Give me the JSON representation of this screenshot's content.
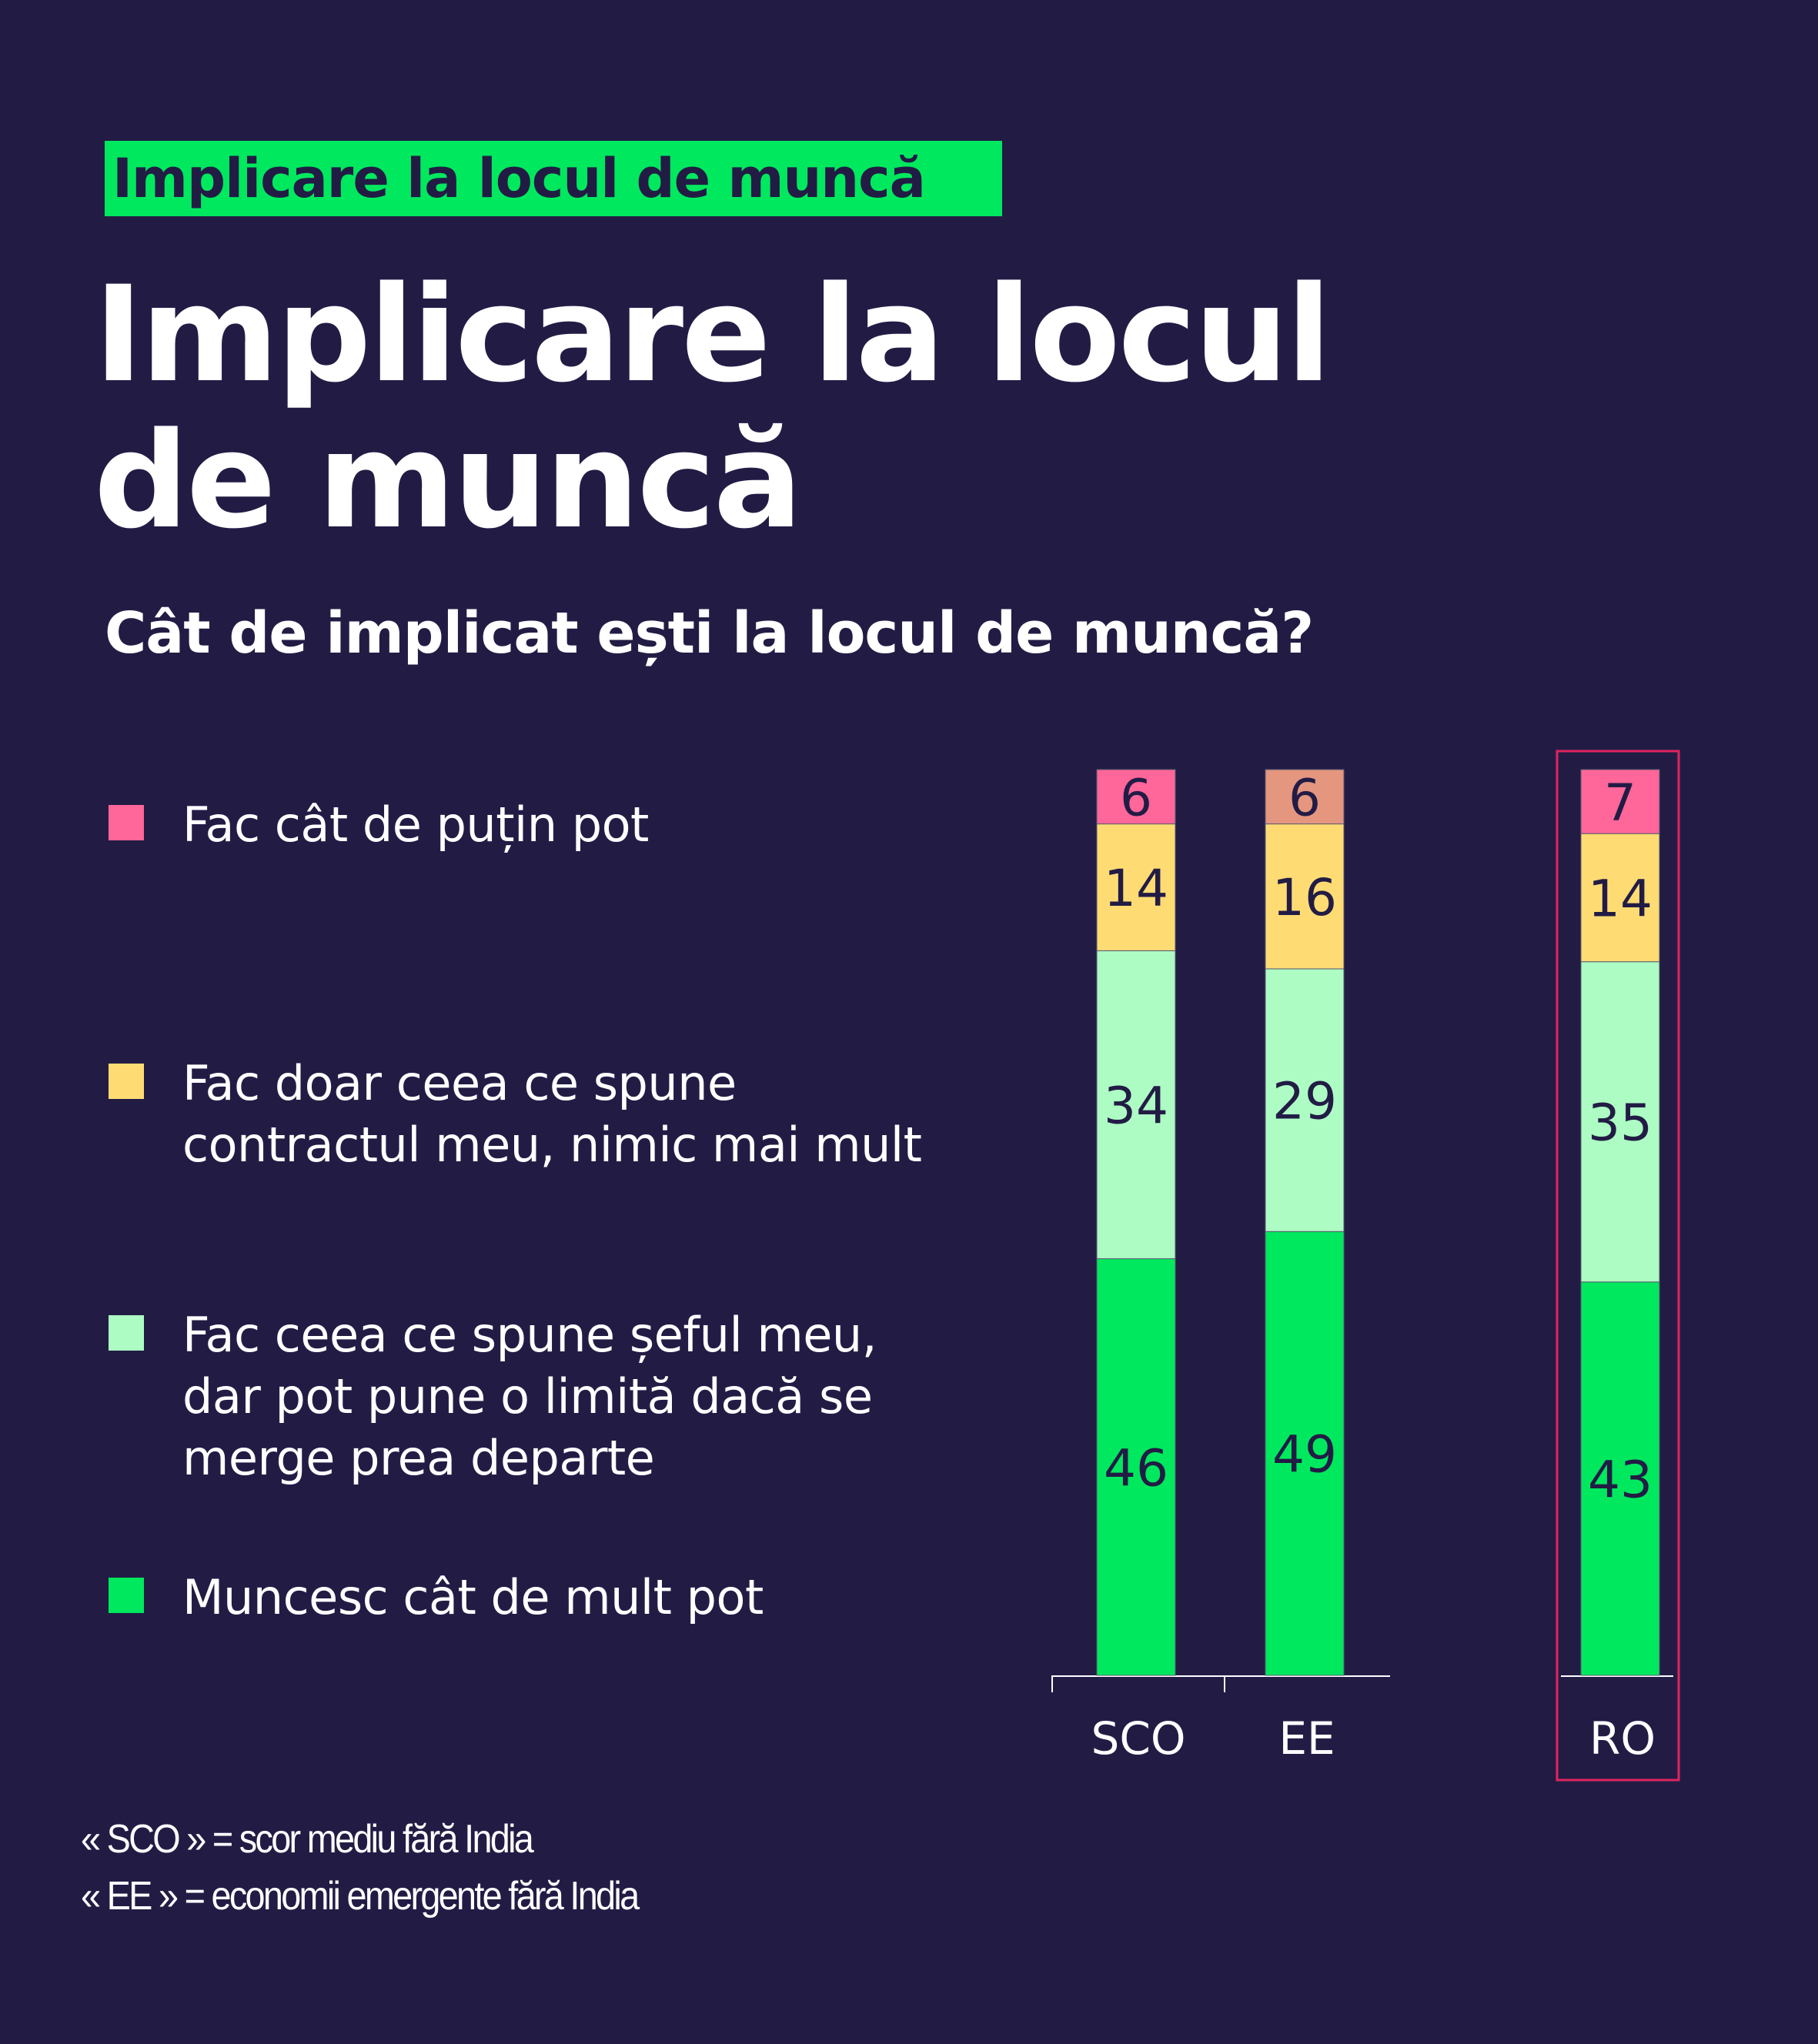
{
  "tag": "Implicare la locul de muncă",
  "title_lines": [
    "Implicare la locul",
    "de muncă"
  ],
  "subtitle": "Cât de implicat ești la locul de muncă?",
  "legend": [
    {
      "label": "Fac cât de puțin pot",
      "color": "#ff6699"
    },
    {
      "label": "Fac doar ceea ce spune contractul meu, nimic mai mult",
      "color": "#ffdc73"
    },
    {
      "label": "Fac ceea ce spune șeful meu, dar pot pune o limită dacă se merge prea departe",
      "color": "#adfcc4"
    },
    {
      "label": "Muncesc cât de mult pot",
      "color": "#00e85e"
    }
  ],
  "chart_data": {
    "type": "bar",
    "stacked": true,
    "categories": [
      "SCO",
      "EE",
      "RO"
    ],
    "highlighted_category": "RO",
    "highlight_color": "#e0245e",
    "series": [
      {
        "name": "Muncesc cât de mult pot",
        "color": "#00e85e",
        "values": [
          46,
          49,
          43
        ]
      },
      {
        "name": "Fac ceea ce spune șeful meu, dar pot pune o limită dacă se merge prea departe",
        "color": "#adfcc4",
        "values": [
          34,
          29,
          35
        ]
      },
      {
        "name": "Fac doar ceea ce spune contractul meu, nimic mai mult",
        "color": "#ffdc73",
        "values": [
          14,
          16,
          14
        ]
      },
      {
        "name": "Fac cât de puțin pot",
        "color": "#ff6699",
        "values": [
          6,
          6,
          7
        ],
        "overrides": {
          "EE": "#e4967f"
        }
      }
    ],
    "data_labels": true,
    "grid": false
  },
  "footnotes": [
    "« SCO » = scor mediu fără India",
    "« EE » = economii emergente fără India"
  ],
  "colors": {
    "background": "#221c45",
    "label_text": "#221c45"
  }
}
